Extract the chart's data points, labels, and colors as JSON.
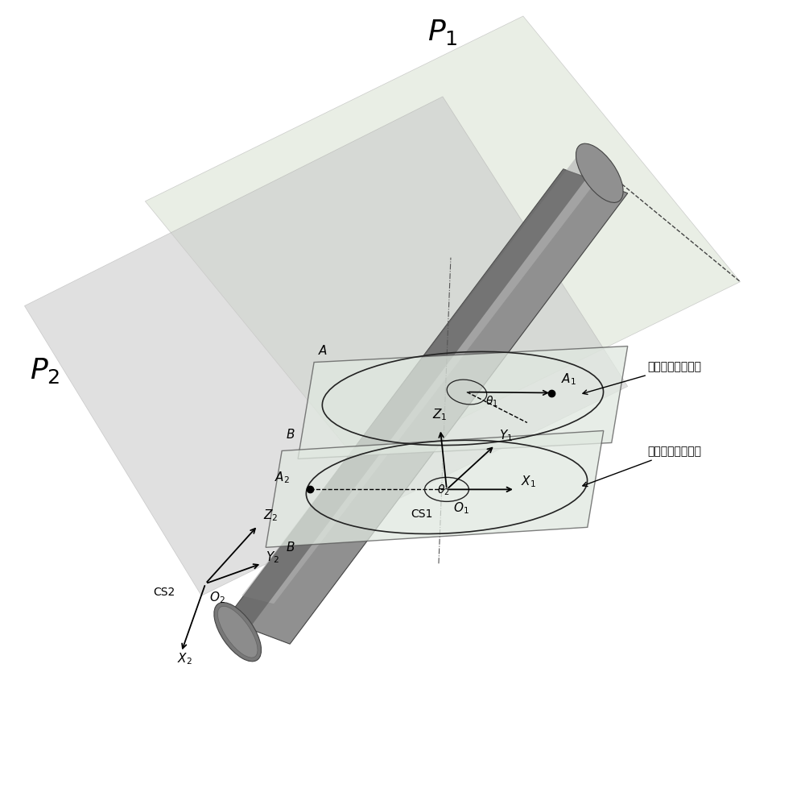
{
  "bg_color": "#ffffff",
  "plane_P1_color": "#d8d8d8",
  "plane_P2_color": "#d0d0d0",
  "cylinder_color": "#888888",
  "ellipse_color": "#333333",
  "rect_color": "#cccccc",
  "arrow_color": "#111111",
  "annotation_color": "#111111",
  "title": "",
  "P1_label": "$P_1$",
  "P2_label": "$P_2$",
  "CS1_label": "CS1",
  "CS2_label": "CS2",
  "annotation1": "内圈中心运动轨迹",
  "annotation2": "内圈中心运动轨迹"
}
